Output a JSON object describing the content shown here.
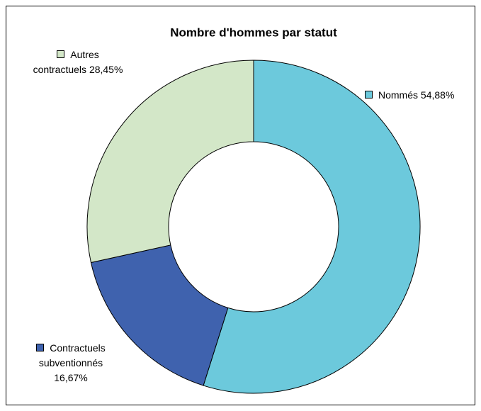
{
  "chart_data": {
    "type": "donut",
    "title": "Nombre d'hommes par statut",
    "categories": [
      "Nommés",
      "Contractuels subventionnés",
      "Autres contractuels"
    ],
    "values": [
      54.88,
      16.67,
      28.45
    ],
    "value_labels": [
      "54,88%",
      "16,67%",
      "28,45%"
    ],
    "colors": [
      "#6cc9dc",
      "#3f62ae",
      "#d3e7c8"
    ]
  }
}
